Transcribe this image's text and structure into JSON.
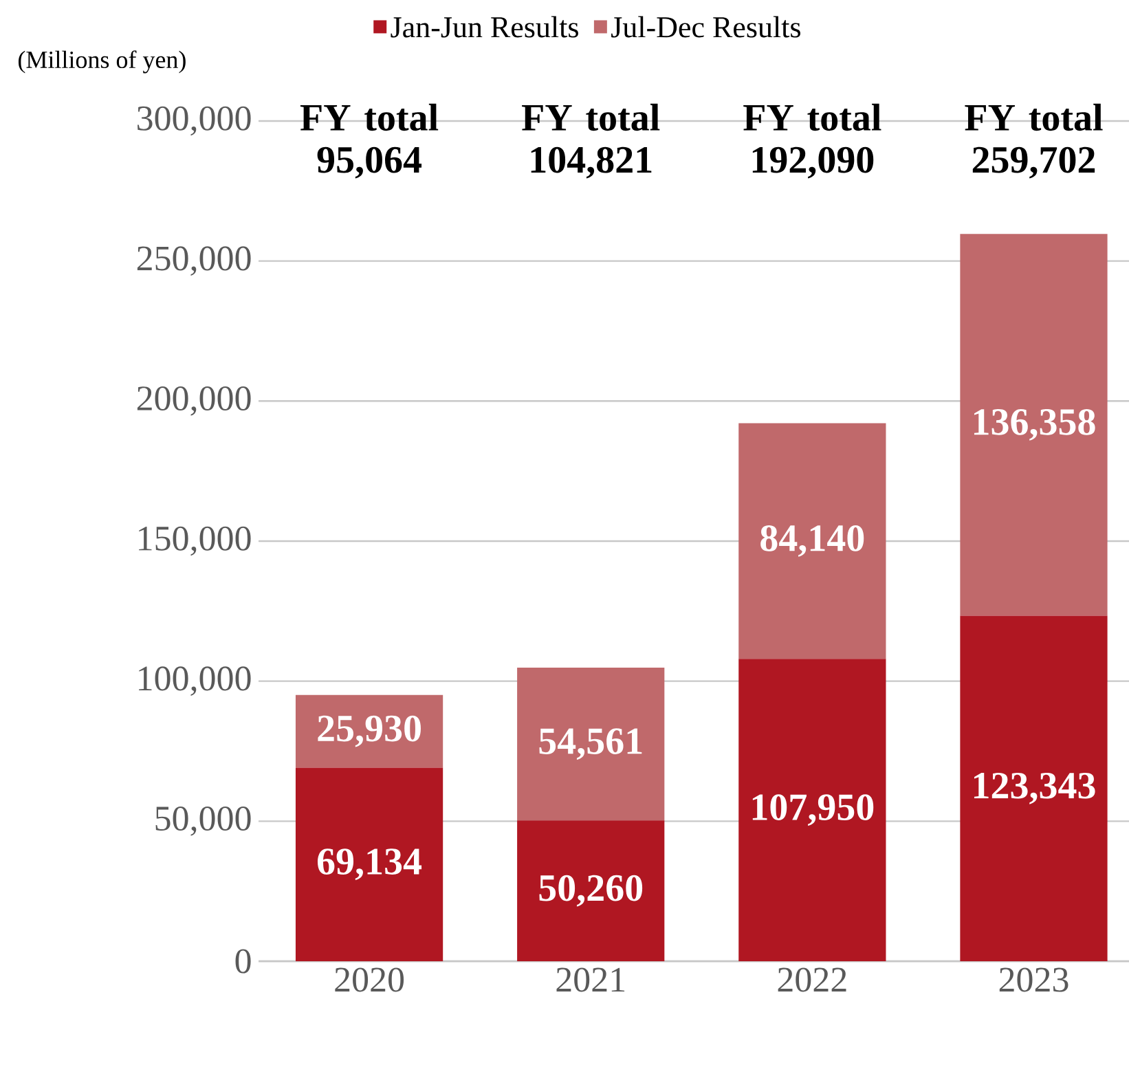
{
  "chart_data": {
    "type": "bar",
    "stacked": true,
    "ylabel": "(Millions of yen)",
    "categories": [
      "2020",
      "2021",
      "2022",
      "2023"
    ],
    "series": [
      {
        "name": "Jan-Jun Results",
        "color": "#b01722",
        "values": [
          69134,
          50260,
          107950,
          123343
        ],
        "value_labels": [
          "69,134",
          "50,260",
          "107,950",
          "123,343"
        ]
      },
      {
        "name": "Jul-Dec Results",
        "color": "#c0696b",
        "values": [
          25930,
          54561,
          84140,
          136358
        ],
        "value_labels": [
          "25,930",
          "54,561",
          "84,140",
          "136,358"
        ]
      }
    ],
    "annotations": [
      "FY total 95,064",
      "FY total 104,821",
      "FY total 192,090",
      "FY total 259,702"
    ],
    "ylim": [
      0,
      300000
    ],
    "yticks": [
      {
        "value": 0,
        "label": "0"
      },
      {
        "value": 50000,
        "label": "50,000"
      },
      {
        "value": 100000,
        "label": "100,000"
      },
      {
        "value": 150000,
        "label": "150,000"
      },
      {
        "value": 200000,
        "label": "200,000"
      },
      {
        "value": 250000,
        "label": "250,000"
      },
      {
        "value": 300000,
        "label": "300,000"
      }
    ],
    "grid": "y",
    "legend": "top"
  }
}
